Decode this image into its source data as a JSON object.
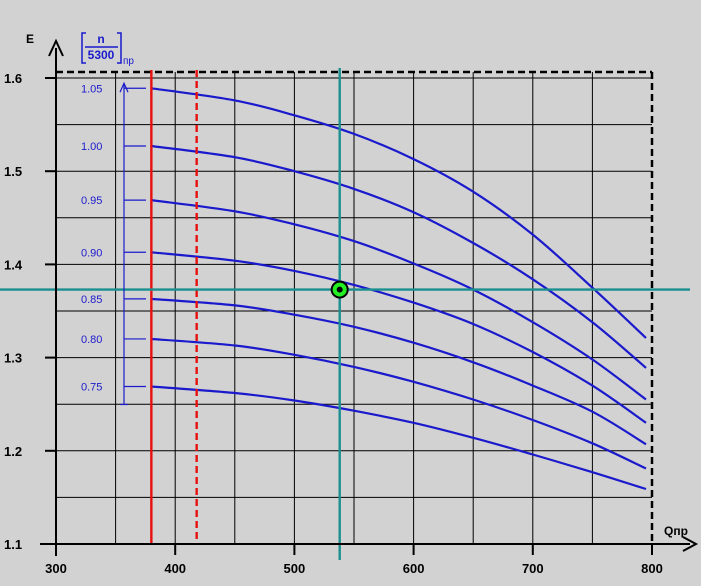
{
  "chart_data": {
    "type": "line",
    "title": "",
    "xlabel": "Qпр",
    "ylabel": "E",
    "xlim": [
      300,
      800
    ],
    "ylim": [
      1.1,
      1.61
    ],
    "xticks": [
      300,
      400,
      500,
      600,
      700,
      800
    ],
    "xtick_labels": [
      "300",
      "400",
      "500",
      "600",
      "700",
      "800"
    ],
    "yticks": [
      1.1,
      1.2,
      1.3,
      1.4,
      1.5,
      1.6
    ],
    "ytick_labels": [
      "1.1",
      "1.2",
      "1.3",
      "1.4",
      "1.5",
      "1.6"
    ],
    "grid": true,
    "parameter_label": {
      "numerator": "n",
      "denominator": "5300",
      "subscript": "пр"
    },
    "series": [
      {
        "label": "1.05",
        "points": [
          [
            380,
            1.589
          ],
          [
            450,
            1.576
          ],
          [
            500,
            1.56
          ],
          [
            550,
            1.54
          ],
          [
            600,
            1.513
          ],
          [
            650,
            1.478
          ],
          [
            700,
            1.432
          ],
          [
            750,
            1.375
          ],
          [
            795,
            1.321
          ]
        ]
      },
      {
        "label": "1.00",
        "points": [
          [
            380,
            1.527
          ],
          [
            450,
            1.515
          ],
          [
            500,
            1.5
          ],
          [
            550,
            1.481
          ],
          [
            600,
            1.456
          ],
          [
            650,
            1.423
          ],
          [
            700,
            1.384
          ],
          [
            750,
            1.338
          ],
          [
            795,
            1.289
          ]
        ]
      },
      {
        "label": "0.95",
        "points": [
          [
            380,
            1.469
          ],
          [
            450,
            1.457
          ],
          [
            500,
            1.443
          ],
          [
            550,
            1.425
          ],
          [
            600,
            1.401
          ],
          [
            650,
            1.373
          ],
          [
            700,
            1.338
          ],
          [
            750,
            1.298
          ],
          [
            795,
            1.255
          ]
        ]
      },
      {
        "label": "0.90",
        "points": [
          [
            380,
            1.413
          ],
          [
            450,
            1.404
          ],
          [
            500,
            1.393
          ],
          [
            550,
            1.378
          ],
          [
            600,
            1.359
          ],
          [
            650,
            1.336
          ],
          [
            700,
            1.306
          ],
          [
            750,
            1.27
          ],
          [
            795,
            1.23
          ]
        ]
      },
      {
        "label": "0.85",
        "points": [
          [
            380,
            1.363
          ],
          [
            450,
            1.356
          ],
          [
            500,
            1.346
          ],
          [
            550,
            1.333
          ],
          [
            600,
            1.316
          ],
          [
            650,
            1.295
          ],
          [
            700,
            1.27
          ],
          [
            750,
            1.242
          ],
          [
            795,
            1.207
          ]
        ]
      },
      {
        "label": "0.80",
        "points": [
          [
            380,
            1.32
          ],
          [
            450,
            1.313
          ],
          [
            500,
            1.303
          ],
          [
            550,
            1.29
          ],
          [
            600,
            1.274
          ],
          [
            650,
            1.255
          ],
          [
            700,
            1.233
          ],
          [
            750,
            1.208
          ],
          [
            795,
            1.181
          ]
        ]
      },
      {
        "label": "0.75",
        "points": [
          [
            380,
            1.269
          ],
          [
            450,
            1.262
          ],
          [
            500,
            1.254
          ],
          [
            550,
            1.243
          ],
          [
            600,
            1.23
          ],
          [
            650,
            1.214
          ],
          [
            700,
            1.196
          ],
          [
            750,
            1.177
          ],
          [
            795,
            1.159
          ]
        ]
      }
    ],
    "vertical_lines": [
      {
        "x": 380,
        "color": "#e8100f",
        "style": "solid"
      },
      {
        "x": 418,
        "color": "#e8100f",
        "style": "dashed"
      },
      {
        "x": 538,
        "color": "#1b8f8f",
        "style": "solid"
      }
    ],
    "horizontal_lines": [
      {
        "y": 1.373,
        "color": "#1b8f8f",
        "style": "solid"
      }
    ],
    "operating_point": {
      "x": 538,
      "y": 1.373,
      "color": "#22ee22"
    },
    "scale_bar": {
      "from": 0.75,
      "to": 1.05
    },
    "colors": {
      "curve": "#1a1acc",
      "grid": "#000000",
      "background": "#d2d2d2"
    }
  }
}
